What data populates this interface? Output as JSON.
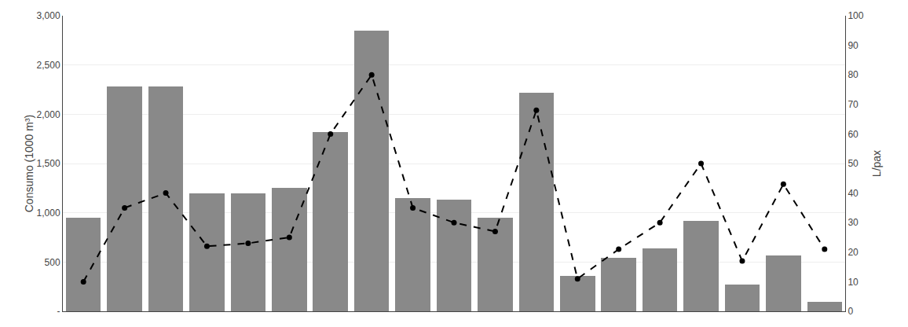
{
  "chart_data": {
    "type": "bar",
    "categories": [
      null,
      null,
      null,
      null,
      null,
      null,
      null,
      null,
      null,
      null,
      null,
      null,
      null,
      null,
      null,
      null,
      null,
      null,
      null
    ],
    "series": [
      {
        "type": "bar",
        "color": "#898989",
        "values": [
          950,
          2280,
          2280,
          1200,
          1200,
          1250,
          1820,
          2850,
          1150,
          1130,
          950,
          2220,
          360,
          540,
          640,
          920,
          270,
          570,
          95
        ]
      },
      {
        "type": "line",
        "axis": "y2",
        "color": "#000000",
        "line_style": "dashed",
        "marker": "circle",
        "values": [
          10,
          35,
          40,
          22,
          23,
          25,
          60,
          80,
          35,
          30,
          27,
          68,
          11,
          21,
          30,
          50,
          17,
          43,
          21
        ]
      }
    ],
    "ylabel": "Consumo (1000 m³)",
    "y2label": "L/pax",
    "ylim": [
      0,
      3000
    ],
    "yticks": [
      {
        "value": 0,
        "label": "-"
      },
      500,
      {
        "value": 1000,
        "label": "1,000"
      },
      {
        "value": 1500,
        "label": "1,500"
      },
      {
        "value": 2000,
        "label": "2,000"
      },
      {
        "value": 2500,
        "label": "2,500"
      },
      {
        "value": 3000,
        "label": "3,000"
      }
    ],
    "y2lim": [
      0,
      100
    ],
    "y2ticks": [
      0,
      10,
      20,
      30,
      40,
      50,
      60,
      70,
      80,
      90,
      100
    ],
    "grid": true,
    "tick_labels": "y"
  }
}
